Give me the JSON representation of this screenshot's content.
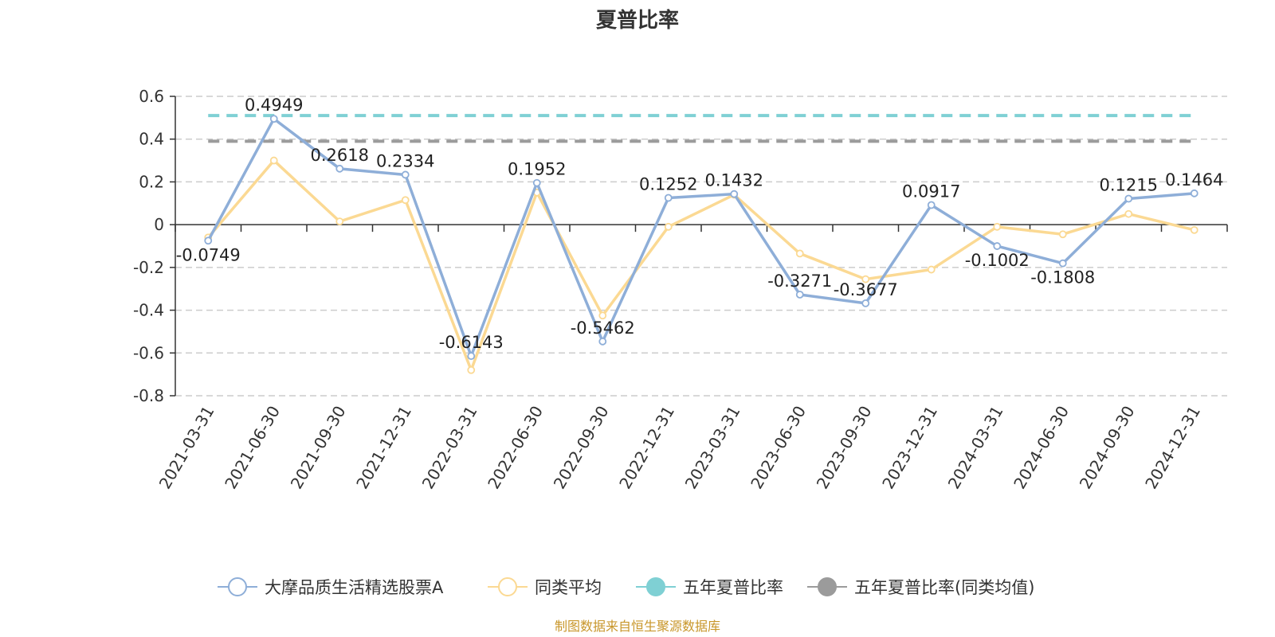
{
  "chart_data": {
    "type": "line",
    "title": "夏普比率",
    "categories": [
      "2021-03-31",
      "2021-06-30",
      "2021-09-30",
      "2021-12-31",
      "2022-03-31",
      "2022-06-30",
      "2022-09-30",
      "2022-12-31",
      "2023-03-31",
      "2023-06-30",
      "2023-09-30",
      "2023-12-31",
      "2024-03-31",
      "2024-06-30",
      "2024-09-30",
      "2024-12-31"
    ],
    "ylim": [
      -0.8,
      0.6
    ],
    "yticks": [
      0.6,
      0.4,
      0.2,
      0,
      -0.2,
      -0.4,
      -0.6,
      -0.8
    ],
    "ytick_labels": [
      "0.6",
      "0.4",
      "0.2",
      "0",
      "-0.2",
      "-0.4",
      "-0.6",
      "-0.8"
    ],
    "grid": true,
    "legend_position": "bottom",
    "series": [
      {
        "name": "大摩品质生活精选股票A",
        "color": "#8eaed8",
        "values": [
          -0.0749,
          0.4949,
          0.2618,
          0.2334,
          -0.6143,
          0.1952,
          -0.5462,
          0.1252,
          0.1432,
          -0.3271,
          -0.3677,
          0.0917,
          -0.1002,
          -0.1808,
          0.1215,
          0.1464
        ],
        "labels": [
          "-0.0749",
          "0.4949",
          "0.2618",
          "0.2334",
          "-0.6143",
          "0.1952",
          "-0.5462",
          "0.1252",
          "0.1432",
          "-0.3271",
          "-0.3677",
          "0.0917",
          "-0.1002",
          "-0.1808",
          "0.1215",
          "0.1464"
        ]
      },
      {
        "name": "同类平均",
        "color": "#fbd993",
        "values": [
          -0.06,
          0.3,
          0.015,
          0.115,
          -0.68,
          0.15,
          -0.425,
          -0.01,
          0.14,
          -0.135,
          -0.255,
          -0.21,
          -0.01,
          -0.045,
          0.05,
          -0.025
        ]
      },
      {
        "name": "五年夏普比率",
        "color": "#7fd0d4",
        "value": 0.51,
        "style": "dashed"
      },
      {
        "name": "五年夏普比率(同类均值)",
        "color": "#9b9b9b",
        "value": 0.39,
        "style": "dashed"
      }
    ],
    "source": "制图数据来自恒生聚源数据库"
  }
}
